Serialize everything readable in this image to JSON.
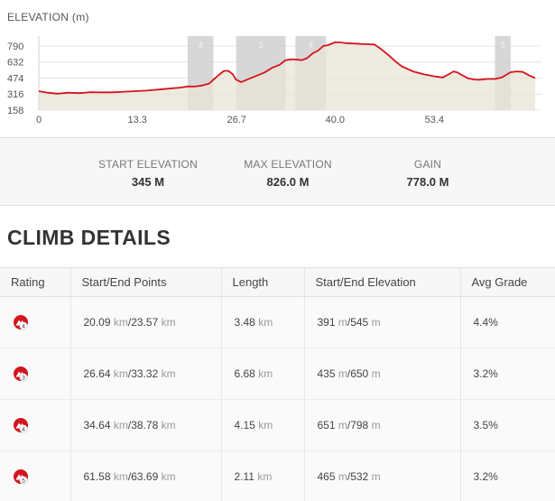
{
  "chart": {
    "title": "ELEVATION (m)"
  },
  "chart_data": {
    "type": "area",
    "ylabel": "ELEVATION (m)",
    "ylim": [
      158,
      826
    ],
    "xlim": [
      0,
      67
    ],
    "y_ticks": [
      "790",
      "632",
      "474",
      "316",
      "158"
    ],
    "y_tick_values": [
      790,
      632,
      474,
      316,
      158
    ],
    "x_ticks": [
      "0",
      "13.3",
      "26.7",
      "40.0",
      "53.4"
    ],
    "x_tick_values": [
      0,
      13.3,
      26.7,
      40.0,
      53.4
    ],
    "x": [
      0,
      1.2,
      2.5,
      4,
      5.5,
      7,
      8.5,
      10,
      11.5,
      13,
      14.5,
      16,
      17.5,
      19,
      20.1,
      21,
      22,
      23,
      23.6,
      24.3,
      25,
      25.6,
      26.2,
      26.6,
      27.3,
      28.5,
      29.5,
      30.5,
      31.5,
      32.5,
      33.3,
      34.2,
      35,
      35.5,
      36.2,
      37,
      37.7,
      38.4,
      39,
      40,
      40.5,
      41.5,
      42.5,
      43.5,
      44.5,
      45.3,
      46.2,
      47.2,
      48.1,
      49,
      50.5,
      52,
      53.5,
      54.5,
      55.3,
      56,
      56.5,
      57.2,
      58,
      58.8,
      59.5,
      60.5,
      61.6,
      62.5,
      63.7,
      64.5,
      65.3,
      66.2,
      67
    ],
    "y": [
      345,
      330,
      320,
      330,
      325,
      335,
      333,
      333,
      340,
      345,
      350,
      360,
      370,
      380,
      391,
      390,
      400,
      420,
      460,
      505,
      545,
      545,
      510,
      460,
      435,
      470,
      500,
      530,
      575,
      605,
      650,
      660,
      655,
      651,
      670,
      720,
      745,
      790,
      798,
      826,
      826,
      818,
      815,
      810,
      808,
      805,
      760,
      700,
      640,
      590,
      540,
      510,
      490,
      480,
      510,
      540,
      530,
      500,
      470,
      460,
      458,
      465,
      465,
      480,
      532,
      540,
      535,
      500,
      475
    ],
    "highlights": [
      {
        "label": "4",
        "start": 20.09,
        "end": 23.57
      },
      {
        "label": "3",
        "start": 26.64,
        "end": 33.32
      },
      {
        "label": "4",
        "start": 34.64,
        "end": 38.78
      },
      {
        "label": "5",
        "start": 61.58,
        "end": 63.69
      }
    ],
    "colors": {
      "line": "#d4141e",
      "area": "#e8e4d6",
      "highlight": "#d0d0d0"
    }
  },
  "stats": {
    "start": {
      "label": "START ELEVATION",
      "value": "345 M"
    },
    "max": {
      "label": "MAX ELEVATION",
      "value": "826.0 M"
    },
    "gain": {
      "label": "GAIN",
      "value": "778.0 M"
    }
  },
  "climbs": {
    "title": "CLIMB DETAILS",
    "headers": {
      "rating": "Rating",
      "points": "Start/End Points",
      "length": "Length",
      "elevation": "Start/End Elevation",
      "grade": "Avg Grade"
    },
    "unit_km": "km",
    "unit_m": "m",
    "rows": [
      {
        "rating": "4",
        "start_km": "20.09",
        "end_km": "23.57",
        "length": "3.48",
        "start_el": "391",
        "end_el": "545",
        "grade": "4.4%"
      },
      {
        "rating": "3",
        "start_km": "26.64",
        "end_km": "33.32",
        "length": "6.68",
        "start_el": "435",
        "end_el": "650",
        "grade": "3.2%"
      },
      {
        "rating": "4",
        "start_km": "34.64",
        "end_km": "38.78",
        "length": "4.15",
        "start_el": "651",
        "end_el": "798",
        "grade": "3.5%"
      },
      {
        "rating": "5",
        "start_km": "61.58",
        "end_km": "63.69",
        "length": "2.11",
        "start_el": "465",
        "end_el": "532",
        "grade": "3.2%"
      }
    ]
  }
}
